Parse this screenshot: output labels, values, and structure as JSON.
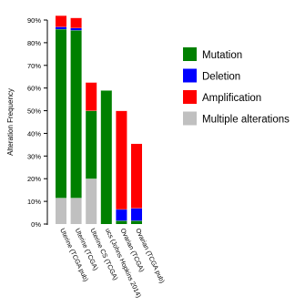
{
  "chart_data": {
    "type": "bar",
    "stacked": true,
    "ylabel": "Alteration Frequency",
    "ylim": [
      0,
      90
    ],
    "yticks": [
      0,
      10,
      20,
      30,
      40,
      50,
      60,
      70,
      80,
      90
    ],
    "ytick_labels": [
      "0%",
      "10%",
      "20%",
      "30%",
      "40%",
      "50%",
      "60%",
      "70%",
      "80%",
      "90%"
    ],
    "categories": [
      "Uterine (TCGA pub)",
      "Uterine (TCGA)",
      "Uterine CS (TCGA)",
      "ucs (Johns Hopkins 2014)",
      "Ovarian (TCGA)",
      "Ovarian (TCGA pub)"
    ],
    "series": [
      {
        "name": "Multiple alterations",
        "color": "#c0c0c0",
        "values": [
          11.5,
          11.5,
          20,
          0,
          0,
          0
        ]
      },
      {
        "name": "Mutation",
        "color": "#008000",
        "values": [
          74.5,
          74,
          30,
          59,
          1.5,
          1.5
        ]
      },
      {
        "name": "Deletion",
        "color": "#0000ff",
        "values": [
          1,
          1,
          0,
          0,
          5,
          5.5
        ]
      },
      {
        "name": "Amplification",
        "color": "#ff0000",
        "values": [
          5,
          4.5,
          12.5,
          0,
          43.5,
          28.5
        ]
      }
    ],
    "legend": {
      "placement": "right",
      "order": [
        "Mutation",
        "Deletion",
        "Amplification",
        "Multiple alterations"
      ]
    },
    "grid": false
  }
}
